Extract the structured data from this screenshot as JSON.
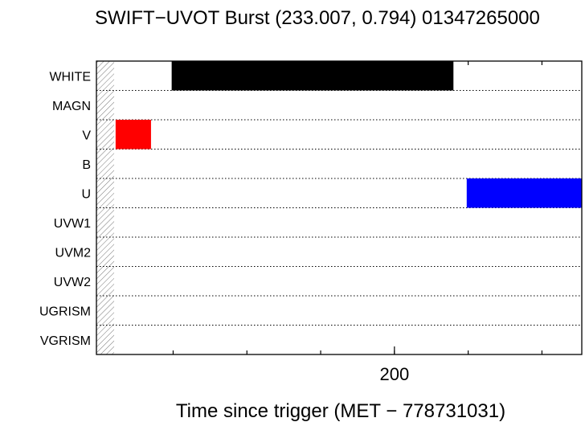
{
  "chart_data": {
    "type": "bar",
    "title": "SWIFT−UVOT Burst (233.007, 0.794) 01347265000",
    "xlabel": "Time since trigger (MET − 778731031)",
    "ylabel": "",
    "xlim": [
      -2,
      327
    ],
    "x_ticks": [
      200
    ],
    "x_tick_labels": [
      "200"
    ],
    "categories": [
      "WHITE",
      "MAGN",
      "V",
      "B",
      "U",
      "UVW1",
      "UVM2",
      "UVW2",
      "UGRISM",
      "VGRISM"
    ],
    "hatched_region": [
      -2,
      10
    ],
    "grid": "dotted horizontal separators between filters",
    "series": [
      {
        "filter": "WHITE",
        "start": 49,
        "end": 240,
        "color": "#000000"
      },
      {
        "filter": "V",
        "start": 11,
        "end": 35,
        "color": "#ff0000"
      },
      {
        "filter": "U",
        "start": 249,
        "end": 327,
        "color": "#0000ff"
      }
    ]
  }
}
